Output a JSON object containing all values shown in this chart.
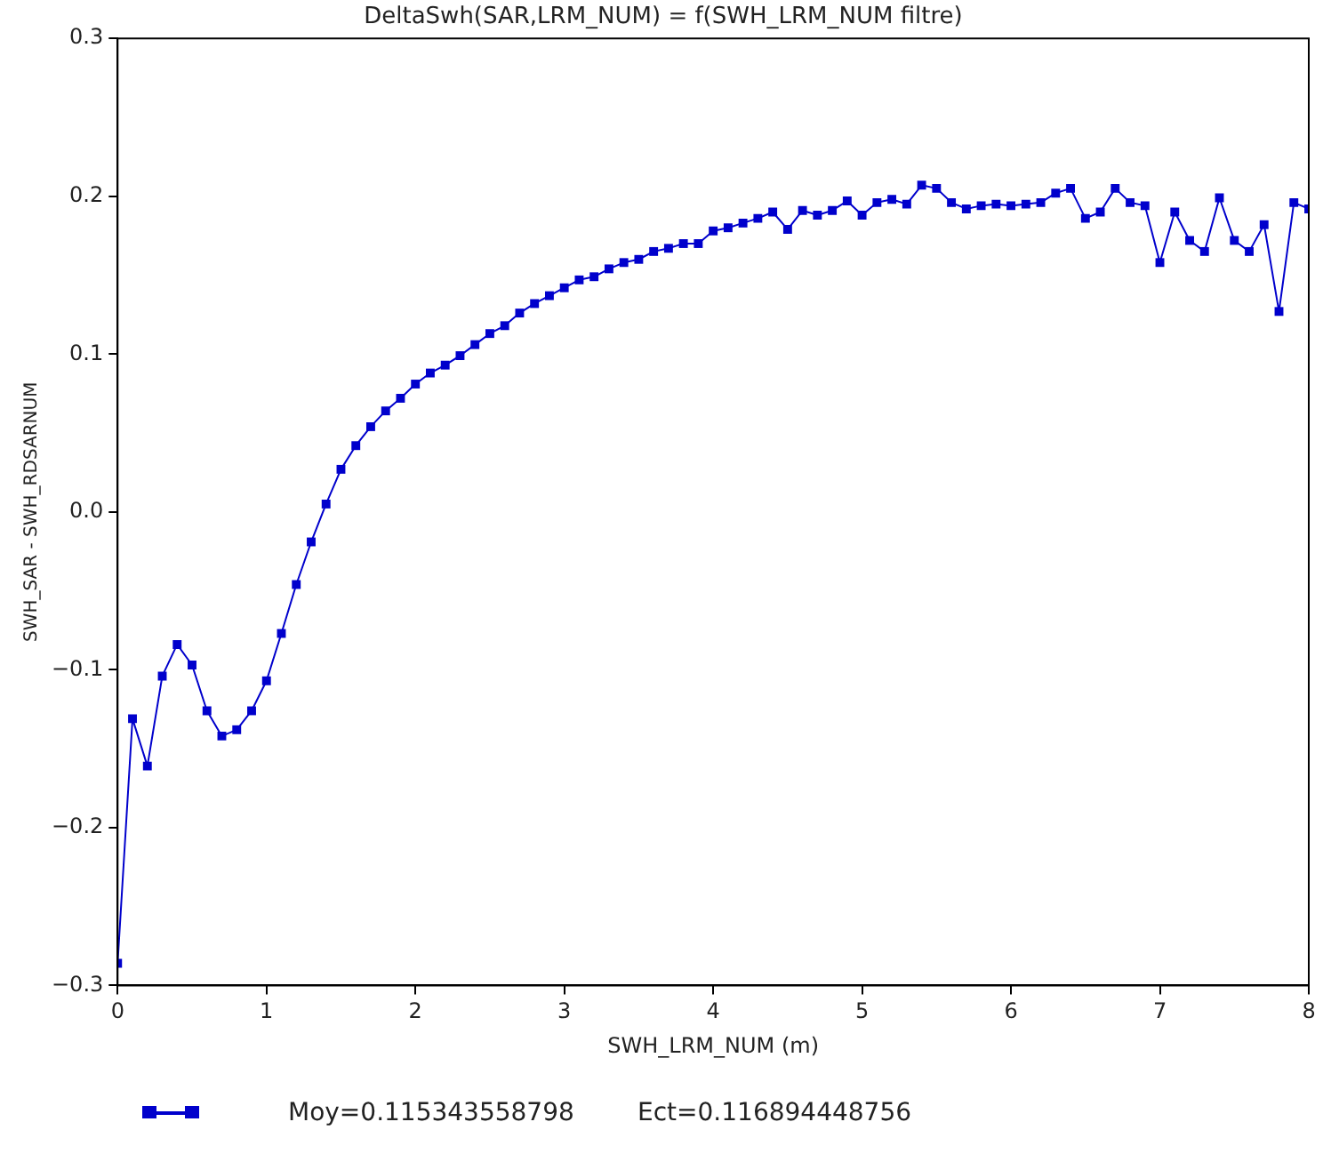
{
  "chart_data": {
    "type": "line",
    "title": "DeltaSwh(SAR,LRM_NUM) = f(SWH_LRM_NUM filtre)",
    "xlabel": "SWH_LRM_NUM (m)",
    "ylabel": "SWH_SAR - SWH_RDSARNUM",
    "x": [
      0,
      0.1,
      0.2,
      0.3,
      0.4,
      0.5,
      0.6,
      0.7,
      0.8,
      0.9,
      1.0,
      1.1,
      1.2,
      1.3,
      1.4,
      1.5,
      1.6,
      1.7,
      1.8,
      1.9,
      2.0,
      2.1,
      2.2,
      2.3,
      2.4,
      2.5,
      2.6,
      2.7,
      2.8,
      2.9,
      3.0,
      3.1,
      3.2,
      3.3,
      3.4,
      3.5,
      3.6,
      3.7,
      3.8,
      3.9,
      4.0,
      4.1,
      4.2,
      4.3,
      4.4,
      4.5,
      4.6,
      4.7,
      4.8,
      4.9,
      5.0,
      5.1,
      5.2,
      5.3,
      5.4,
      5.5,
      5.6,
      5.7,
      5.8,
      5.9,
      6.0,
      6.1,
      6.2,
      6.3,
      6.4,
      6.5,
      6.6,
      6.7,
      6.8,
      6.9,
      7.0,
      7.1,
      7.2,
      7.3,
      7.4,
      7.5,
      7.6,
      7.7,
      7.8,
      7.9,
      8.0
    ],
    "series": [
      {
        "name": "Moy=0.115343558798        Ect=0.116894448756",
        "color": "#0000cc",
        "values": [
          -0.286,
          -0.131,
          -0.161,
          -0.104,
          -0.084,
          -0.097,
          -0.126,
          -0.142,
          -0.138,
          -0.126,
          -0.107,
          -0.077,
          -0.046,
          -0.019,
          0.005,
          0.027,
          0.042,
          0.054,
          0.064,
          0.072,
          0.081,
          0.088,
          0.093,
          0.099,
          0.106,
          0.113,
          0.118,
          0.126,
          0.132,
          0.137,
          0.142,
          0.147,
          0.149,
          0.154,
          0.158,
          0.16,
          0.165,
          0.167,
          0.17,
          0.17,
          0.178,
          0.18,
          0.183,
          0.186,
          0.19,
          0.179,
          0.191,
          0.188,
          0.191,
          0.197,
          0.188,
          0.196,
          0.198,
          0.195,
          0.207,
          0.205,
          0.196,
          0.192,
          0.194,
          0.195,
          0.194,
          0.195,
          0.196,
          0.202,
          0.205,
          0.186,
          0.19,
          0.205,
          0.196,
          0.194,
          0.158,
          0.19,
          0.172,
          0.165,
          0.199,
          0.172,
          0.165,
          0.182,
          0.127,
          0.196,
          0.192
        ]
      }
    ],
    "xlim": [
      0,
      8
    ],
    "xticks": [
      0,
      1,
      2,
      3,
      4,
      5,
      6,
      7,
      8
    ],
    "ylim": [
      -0.3,
      0.3
    ],
    "yticks": [
      {
        "value": -0.3,
        "label": "−0.3"
      },
      {
        "value": -0.2,
        "label": "−0.2"
      },
      {
        "value": -0.1,
        "label": "−0.1"
      },
      {
        "value": 0,
        "label": "0.0"
      },
      {
        "value": 0.1,
        "label": "0.1"
      },
      {
        "value": 0.2,
        "label": "0.2"
      },
      {
        "value": 0.3,
        "label": "0.3"
      }
    ],
    "grid": false,
    "legend": "bottom left",
    "marker": "square",
    "line_style": "solid"
  }
}
